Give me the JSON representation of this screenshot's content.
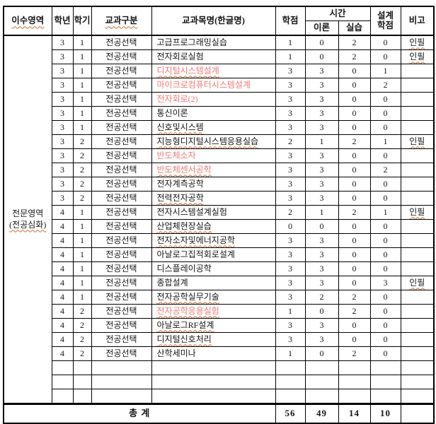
{
  "document": {
    "header": {
      "area": "이수영역",
      "grade": "학년",
      "semester": "학기",
      "category": "교과구분",
      "course_name": "교과목명(한글명)",
      "credits": "학점",
      "hours": "시간",
      "theory": "이론",
      "practice": "실습",
      "design_credits": "설계학점",
      "remarks": "비고"
    },
    "area_label": {
      "line1": "전문영역",
      "line2": "(전공심화)"
    },
    "rows": [
      {
        "grade": "3",
        "semester": "1",
        "category": "전공선택",
        "name": "고급프로그래밍실습",
        "credits": "1",
        "theory": "0",
        "practice": "2",
        "design": "0",
        "remark": "인필",
        "name_style": "plain",
        "name_squiggle": false,
        "remark_squiggle": true
      },
      {
        "grade": "3",
        "semester": "1",
        "category": "전공선택",
        "name": "전자회로실험",
        "credits": "1",
        "theory": "0",
        "practice": "2",
        "design": "0",
        "remark": "인필",
        "name_style": "plain",
        "name_squiggle": false,
        "remark_squiggle": true
      },
      {
        "grade": "3",
        "semester": "1",
        "category": "전공선택",
        "name": "디지털시스템설계",
        "credits": "3",
        "theory": "3",
        "practice": "0",
        "design": "1",
        "remark": "",
        "name_style": "red",
        "name_squiggle": true,
        "remark_squiggle": false
      },
      {
        "grade": "3",
        "semester": "1",
        "category": "전공선택",
        "name": "마이크로컴퓨터시스템설계",
        "credits": "3",
        "theory": "3",
        "practice": "0",
        "design": "2",
        "remark": "",
        "name_style": "red",
        "name_squiggle": false,
        "remark_squiggle": false
      },
      {
        "grade": "3",
        "semester": "1",
        "category": "전공선택",
        "name": "전자회로(2)",
        "credits": "3",
        "theory": "3",
        "practice": "0",
        "design": "0",
        "remark": "",
        "name_style": "red",
        "name_squiggle": false,
        "remark_squiggle": false
      },
      {
        "grade": "3",
        "semester": "1",
        "category": "전공선택",
        "name": "통신이론",
        "credits": "3",
        "theory": "3",
        "practice": "0",
        "design": "0",
        "remark": "",
        "name_style": "plain",
        "name_squiggle": false,
        "remark_squiggle": false
      },
      {
        "grade": "3",
        "semester": "1",
        "category": "전공선택",
        "name": "신호및시스템",
        "credits": "3",
        "theory": "3",
        "practice": "0",
        "design": "0",
        "remark": "",
        "name_style": "plain",
        "name_squiggle": true,
        "remark_squiggle": false
      },
      {
        "grade": "3",
        "semester": "2",
        "category": "전공선택",
        "name": "지능형디지털시스템응용실습",
        "credits": "2",
        "theory": "1",
        "practice": "2",
        "design": "1",
        "remark": "인필",
        "name_style": "plain",
        "name_squiggle": true,
        "remark_squiggle": true
      },
      {
        "grade": "3",
        "semester": "2",
        "category": "전공선택",
        "name": "반도체소자",
        "credits": "3",
        "theory": "3",
        "practice": "0",
        "design": "0",
        "remark": "",
        "name_style": "red",
        "name_squiggle": false,
        "remark_squiggle": false
      },
      {
        "grade": "3",
        "semester": "2",
        "category": "전공선택",
        "name": "반도체센서공학",
        "credits": "3",
        "theory": "3",
        "practice": "0",
        "design": "2",
        "remark": "",
        "name_style": "red",
        "name_squiggle": true,
        "remark_squiggle": false
      },
      {
        "grade": "3",
        "semester": "2",
        "category": "전공선택",
        "name": "전자계측공학",
        "credits": "3",
        "theory": "3",
        "practice": "0",
        "design": "0",
        "remark": "",
        "name_style": "plain",
        "name_squiggle": false,
        "remark_squiggle": false
      },
      {
        "grade": "3",
        "semester": "2",
        "category": "전공선택",
        "name": "전력전자공학",
        "credits": "3",
        "theory": "3",
        "practice": "0",
        "design": "0",
        "remark": "",
        "name_style": "plain",
        "name_squiggle": true,
        "remark_squiggle": false
      },
      {
        "grade": "4",
        "semester": "1",
        "category": "전공선택",
        "name": "전자시스템설계실험",
        "credits": "2",
        "theory": "1",
        "practice": "2",
        "design": "1",
        "remark": "인필",
        "name_style": "plain",
        "name_squiggle": false,
        "remark_squiggle": true
      },
      {
        "grade": "4",
        "semester": "1",
        "category": "전공선택",
        "name": "산업체현장실습",
        "credits": "0",
        "theory": "0",
        "practice": "0",
        "design": "0",
        "remark": "",
        "name_style": "plain",
        "name_squiggle": true,
        "remark_squiggle": false
      },
      {
        "grade": "4",
        "semester": "1",
        "category": "전공선택",
        "name": "전자소자및에너지공학",
        "credits": "3",
        "theory": "3",
        "practice": "0",
        "design": "0",
        "remark": "",
        "name_style": "plain",
        "name_squiggle": true,
        "remark_squiggle": false
      },
      {
        "grade": "4",
        "semester": "1",
        "category": "전공선택",
        "name": "아날로그집적회로설계",
        "credits": "3",
        "theory": "3",
        "practice": "0",
        "design": "0",
        "remark": "",
        "name_style": "plain",
        "name_squiggle": false,
        "remark_squiggle": false
      },
      {
        "grade": "4",
        "semester": "1",
        "category": "전공선택",
        "name": "디스플레이공학",
        "credits": "3",
        "theory": "3",
        "practice": "0",
        "design": "0",
        "remark": "",
        "name_style": "plain",
        "name_squiggle": false,
        "remark_squiggle": false
      },
      {
        "grade": "4",
        "semester": "1",
        "category": "전공선택",
        "name": "종합설계",
        "credits": "3",
        "theory": "3",
        "practice": "0",
        "design": "3",
        "remark": "인필",
        "name_style": "plain",
        "name_squiggle": false,
        "remark_squiggle": true
      },
      {
        "grade": "4",
        "semester": "1",
        "category": "전공선택",
        "name": "전자공학실무기술",
        "credits": "3",
        "theory": "2",
        "practice": "2",
        "design": "0",
        "remark": "",
        "name_style": "plain",
        "name_squiggle": true,
        "remark_squiggle": false
      },
      {
        "grade": "4",
        "semester": "2",
        "category": "전공선택",
        "name": "전자공학응용실험",
        "credits": "1",
        "theory": "0",
        "practice": "2",
        "design": "0",
        "remark": "",
        "name_style": "red",
        "name_squiggle": true,
        "remark_squiggle": false
      },
      {
        "grade": "4",
        "semester": "2",
        "category": "전공선택",
        "name": "아날로그RF설계",
        "credits": "3",
        "theory": "3",
        "practice": "0",
        "design": "0",
        "remark": "",
        "name_style": "plain",
        "name_squiggle": true,
        "remark_squiggle": false
      },
      {
        "grade": "4",
        "semester": "2",
        "category": "전공선택",
        "name": "디지털신호처리",
        "credits": "3",
        "theory": "3",
        "practice": "0",
        "design": "0",
        "remark": "",
        "name_style": "plain",
        "name_squiggle": true,
        "remark_squiggle": false
      },
      {
        "grade": "4",
        "semester": "2",
        "category": "전공선택",
        "name": "산학세미나",
        "credits": "1",
        "theory": "0",
        "practice": "2",
        "design": "0",
        "remark": "",
        "name_style": "plain",
        "name_squiggle": false,
        "remark_squiggle": false
      },
      {
        "grade": "",
        "semester": "",
        "category": "",
        "name": "",
        "credits": "",
        "theory": "",
        "practice": "",
        "design": "",
        "remark": "",
        "name_style": "plain",
        "name_squiggle": false,
        "remark_squiggle": false
      },
      {
        "grade": "",
        "semester": "",
        "category": "",
        "name": "",
        "credits": "",
        "theory": "",
        "practice": "",
        "design": "",
        "remark": "",
        "name_style": "plain",
        "name_squiggle": false,
        "remark_squiggle": false
      },
      {
        "grade": "",
        "semester": "",
        "category": "",
        "name": "",
        "credits": "",
        "theory": "",
        "practice": "",
        "design": "",
        "remark": "",
        "name_style": "plain",
        "name_squiggle": false,
        "remark_squiggle": false
      }
    ],
    "total": {
      "label": "총 계",
      "credits": "56",
      "theory": "49",
      "practice": "14",
      "design": "10",
      "remark": ""
    }
  },
  "colors": {
    "red_text": "#ef7a76",
    "squiggle": "#cc6a33",
    "border": "#000000"
  }
}
